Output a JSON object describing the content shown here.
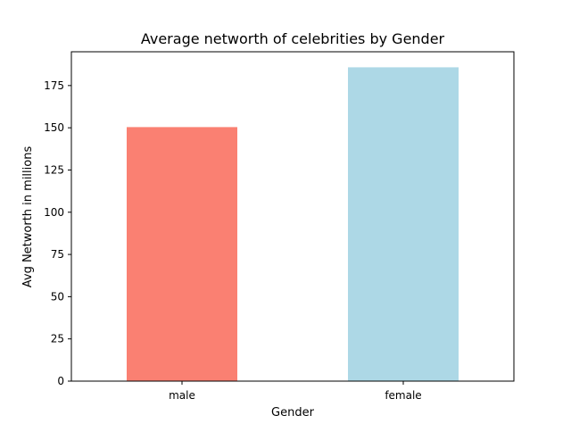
{
  "chart_data": {
    "type": "bar",
    "title": "Average networth of celebrities by Gender",
    "xlabel": "Gender",
    "ylabel": "Avg Networth in millions",
    "categories": [
      "male",
      "female"
    ],
    "values": [
      150.4,
      185.8
    ],
    "colors": [
      "#fa8072",
      "#add8e6"
    ],
    "ylim": [
      0,
      195
    ],
    "yticks": [
      0,
      25,
      50,
      75,
      100,
      125,
      150,
      175
    ],
    "grid": false,
    "legend": "none"
  }
}
